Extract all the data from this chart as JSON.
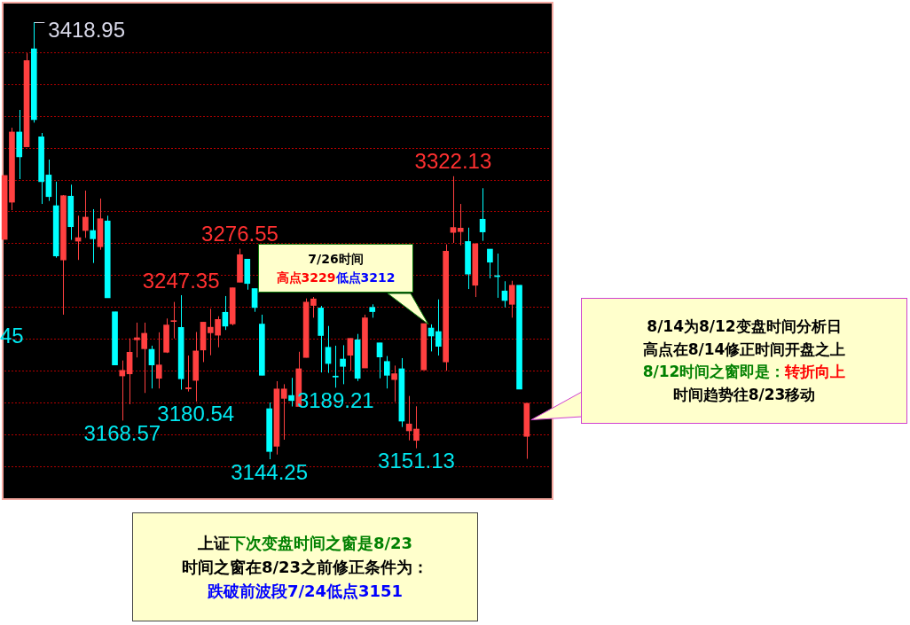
{
  "chart_data": {
    "type": "candlestick",
    "grid": "y",
    "legend": false,
    "yticks": [
      {
        "value": 3140,
        "label": null
      },
      {
        "value": 3160,
        "label": null
      },
      {
        "value": 3180,
        "label": null
      },
      {
        "value": 3200,
        "label": null
      },
      {
        "value": 3220,
        "label": null
      },
      {
        "value": 3240,
        "label": null
      },
      {
        "value": 3260,
        "label": null
      },
      {
        "value": 3280,
        "label": null
      },
      {
        "value": 3300,
        "label": null
      },
      {
        "value": 3320,
        "label": null
      },
      {
        "value": 3340,
        "label": null
      },
      {
        "value": 3360,
        "label": null
      },
      {
        "value": 3380,
        "label": null
      },
      {
        "value": 3400,
        "label": null
      }
    ],
    "categories": [
      null,
      null,
      null,
      null,
      null,
      null,
      null,
      null,
      null,
      null,
      null,
      null,
      null,
      null,
      null,
      null,
      null,
      null,
      null,
      null,
      null,
      null,
      null,
      null,
      null,
      null,
      null,
      null,
      null,
      null,
      null,
      null,
      null,
      null,
      null,
      null,
      null,
      null,
      null,
      null,
      null,
      null,
      null,
      null,
      null,
      null,
      null,
      null,
      null,
      null,
      null,
      null,
      null,
      null,
      null,
      null,
      null,
      null,
      null,
      null,
      null,
      null,
      null,
      null,
      null,
      null,
      null,
      null,
      null,
      null,
      null,
      null
    ],
    "ohlc": [
      [
        3282.4,
        3322.6,
        3282.4,
        3322.6
      ],
      [
        3305.8,
        3352.6,
        3300.8,
        3349.9
      ],
      [
        3349.9,
        3363.8,
        3320.3,
        3334.3
      ],
      [
        3340.6,
        3399.4,
        3340.6,
        3394.8
      ],
      [
        3402.2,
        3418.95,
        3355.8,
        3357.7
      ],
      [
        3346.9,
        3349.3,
        3304.7,
        3318.7
      ],
      [
        3322.9,
        3332.6,
        3306.6,
        3309.3
      ],
      [
        3303.6,
        3318.7,
        3270.9,
        3272
      ],
      [
        3269.5,
        3310.3,
        3235.1,
        3309.9
      ],
      [
        3309.6,
        3316.8,
        3282.1,
        3290.4
      ],
      [
        3281.3,
        3297.3,
        3269.5,
        3283.5
      ],
      [
        3288,
        3313.1,
        3283.4,
        3296.4
      ],
      [
        3288,
        3301.4,
        3267.6,
        3282.8
      ],
      [
        3277.8,
        3308.1,
        3275.9,
        3295.4
      ],
      [
        3294,
        3297.3,
        3245.7,
        3245.7
      ],
      [
        3236.9,
        3236.9,
        3203.5,
        3203.5
      ],
      [
        3196.6,
        3206.3,
        3168.57,
        3200.1
      ],
      [
        3197.9,
        3220.2,
        3178.8,
        3211.5
      ],
      [
        3219.3,
        3230.1,
        3208.2,
        3220.6
      ],
      [
        3213.7,
        3230.1,
        3185.9,
        3223.4
      ],
      [
        3213.3,
        3215.6,
        3188.7,
        3203.5
      ],
      [
        3195.1,
        3224,
        3188.7,
        3203.5
      ],
      [
        3211.5,
        3232.7,
        3211,
        3228.6
      ],
      [
        3230.8,
        3243.1,
        3220.2,
        3231.3
      ],
      [
        3227.1,
        3247.35,
        3188,
        3194.8
      ],
      [
        3188.5,
        3209.4,
        3186.8,
        3189.2
      ],
      [
        3193.8,
        3224.2,
        3180.54,
        3212.3
      ],
      [
        3212.9,
        3230.4,
        3205.3,
        3230.4
      ],
      [
        3223.7,
        3238.8,
        3209.6,
        3227.2
      ],
      [
        3222.2,
        3234.1,
        3214.6,
        3232.1
      ],
      [
        3236.6,
        3246.8,
        3225.5,
        3227.9
      ],
      [
        3229.3,
        3252,
        3228.4,
        3252
      ],
      [
        3255.5,
        3276.55,
        3255.5,
        3272.8
      ],
      [
        3270,
        3270,
        3250.8,
        3254.7
      ],
      [
        3251.5,
        3251.5,
        3236.9,
        3239.6
      ],
      [
        3229.2,
        3235.1,
        3197,
        3197
      ],
      [
        3176,
        3179.9,
        3144.25,
        3149.1
      ],
      [
        3152.4,
        3193.3,
        3147.2,
        3188.4
      ],
      [
        3182.5,
        3191.4,
        3156.5,
        3188.4
      ],
      [
        3184.3,
        3195.4,
        3177.4,
        3181.1
      ],
      [
        3177.4,
        3211.8,
        3177.4,
        3201.1
      ],
      [
        3208.2,
        3245.3,
        3208.2,
        3243
      ],
      [
        3240.9,
        3246.2,
        3233.2,
        3245
      ],
      [
        3239.3,
        3240.6,
        3198.8,
        3222
      ],
      [
        3214.6,
        3228,
        3198.5,
        3204.4
      ],
      [
        3196.5,
        3215.6,
        3189.21,
        3195.9
      ],
      [
        3207.2,
        3215.9,
        3191.4,
        3202.6
      ],
      [
        3209.6,
        3220.2,
        3199.8,
        3220.2
      ],
      [
        3219.3,
        3223,
        3193.4,
        3195.1
      ],
      [
        3201.6,
        3235.1,
        3201.6,
        3233.1
      ],
      [
        3239.7,
        3241.6,
        3233.2,
        3237
      ],
      [
        3217.4,
        3217.4,
        3195.1,
        3208.5
      ],
      [
        3205.7,
        3209.1,
        3188.7,
        3197
      ],
      [
        3194.3,
        3203.1,
        3180.3,
        3198
      ],
      [
        3201.1,
        3207.8,
        3164.5,
        3168.2
      ],
      [
        3162.1,
        3184,
        3156.1,
        3166.4
      ],
      [
        3156.1,
        3177.5,
        3151.13,
        3163.2
      ],
      [
        3200.4,
        3229.5,
        3200.4,
        3229.5
      ],
      [
        3226.7,
        3229,
        3212,
        3221.7
      ],
      [
        3224.5,
        3244.7,
        3209.4,
        3215.2
      ],
      [
        3205.4,
        3279.3,
        3199.8,
        3275
      ],
      [
        3286.8,
        3322.13,
        3280.2,
        3289.9
      ],
      [
        3287.3,
        3304.7,
        3278.7,
        3289.5
      ],
      [
        3281.1,
        3289.8,
        3251.2,
        3260.6
      ],
      [
        3253.6,
        3280,
        3246.2,
        3279.6
      ],
      [
        3295.1,
        3314.6,
        3281.5,
        3287.1
      ],
      [
        3276.3,
        3276.3,
        3257.9,
        3268.1
      ],
      [
        3259.6,
        3273.5,
        3245.7,
        3259
      ],
      [
        3250,
        3256.1,
        3239.7,
        3244
      ],
      [
        3241.6,
        3256.4,
        3233.2,
        3253.6
      ],
      [
        3253.6,
        3253.6,
        3188.3,
        3188.3
      ],
      [
        3158.6,
        3179.4,
        3144.5,
        3179.4
      ]
    ],
    "colors": [
      "#ff4040",
      "#ff4040",
      "#00ffff",
      "#ff4040",
      "#00ffff",
      "#00ffff",
      "#00ffff",
      "#00ffff",
      "#ff4040",
      "#00ffff",
      "#ff4040",
      "#ff4040",
      "#00ffff",
      "#ff4040",
      "#00ffff",
      "#00ffff",
      "#ff4040",
      "#ff4040",
      "#ff4040",
      "#ff4040",
      "#00ffff",
      "#ff4040",
      "#ff4040",
      "#ff4040",
      "#00ffff",
      "#ff4040",
      "#ff4040",
      "#ff4040",
      "#ff4040",
      "#ff4040",
      "#00ffff",
      "#ff4040",
      "#ff4040",
      "#00ffff",
      "#00ffff",
      "#00ffff",
      "#00ffff",
      "#ff4040",
      "#ff4040",
      "#00ffff",
      "#ff4040",
      "#ff4040",
      "#ff4040",
      "#00ffff",
      "#00ffff",
      "#00ffff",
      "#00ffff",
      "#ff4040",
      "#00ffff",
      "#ff4040",
      "#00ffff",
      "#00ffff",
      "#00ffff",
      "#ff4040",
      "#00ffff",
      "#ff4040",
      "#ff4040",
      "#ff4040",
      "#00ffff",
      "#00ffff",
      "#ff4040",
      "#ff4040",
      "#ff4040",
      "#00ffff",
      "#ff4040",
      "#00ffff",
      "#00ffff",
      "#00ffff",
      "#00ffff",
      "#ff4040",
      "#00ffff",
      "#ff4040"
    ],
    "annotations": [
      "3418.95",
      {
        "text": "3276.55",
        "y": 3276.55
      },
      {
        "text": "3247.35",
        "y": 3247.35
      },
      {
        "text": "3322.13",
        "y": 3322.13
      },
      {
        "text": "3168.57",
        "y": 3168.57
      },
      {
        "text": "3180.54",
        "y": 3180.54
      },
      {
        "text": "3144.25",
        "y": 3144.25
      },
      {
        "text": "3189.21",
        "y": 3189.21
      },
      {
        "text": "3151.13",
        "y": 3151.13
      },
      "45",
      "7/26时间",
      "高点3229",
      "低点3212",
      "8/14为8/12变盘时间分析日",
      "高点在8/14修正时间开盘之上",
      "8/12时间之窗即是：",
      "转折向上",
      "时间趋势往8/23移动",
      "上证",
      "下次变盘时间之窗是8/23",
      "时间之窗在8/23之前修正条件为：",
      "跌破前波段7/24低点3151"
    ]
  }
}
